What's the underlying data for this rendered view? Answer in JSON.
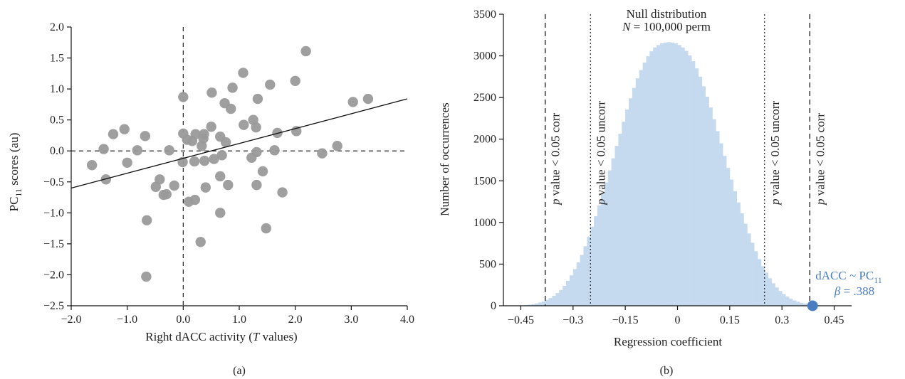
{
  "chart_data": [
    {
      "type": "scatter",
      "panel_label": "(a)",
      "xlabel_prefix": "Right dACC activity (",
      "xlabel_italic": "T",
      "xlabel_suffix": " values)",
      "ylabel_main": "PC",
      "ylabel_sub": "11",
      "ylabel_suffix": " scores (au)",
      "xlim": [
        -2.0,
        4.0
      ],
      "ylim": [
        -2.5,
        2.0
      ],
      "xticks": [
        "−2.0",
        "−1.0",
        "0.0",
        "1.0",
        "2.0",
        "3.0",
        "4.0"
      ],
      "yticks": [
        "2.0",
        "1.5",
        "1.0",
        "0.5",
        "0.0",
        "−0.5",
        "−1.0",
        "−1.5",
        "−2.0",
        "−2.5"
      ],
      "point_color": "#9a9a9a",
      "points": [
        [
          -1.63,
          -0.23
        ],
        [
          -1.42,
          0.03
        ],
        [
          -1.38,
          -0.46
        ],
        [
          -1.25,
          0.27
        ],
        [
          -1.05,
          0.35
        ],
        [
          -1.0,
          -0.19
        ],
        [
          -0.82,
          0.01
        ],
        [
          -0.68,
          0.24
        ],
        [
          -0.65,
          -1.12
        ],
        [
          -0.66,
          -2.03
        ],
        [
          -0.49,
          -0.58
        ],
        [
          -0.42,
          -0.46
        ],
        [
          -0.35,
          -0.71
        ],
        [
          -0.3,
          -0.7
        ],
        [
          -0.25,
          0.01
        ],
        [
          -0.16,
          -0.56
        ],
        [
          0.0,
          0.87
        ],
        [
          0.0,
          0.28
        ],
        [
          -0.01,
          -0.18
        ],
        [
          0.07,
          0.18
        ],
        [
          0.1,
          -0.82
        ],
        [
          0.16,
          0.16
        ],
        [
          0.22,
          0.27
        ],
        [
          0.21,
          -0.79
        ],
        [
          0.2,
          -0.17
        ],
        [
          0.33,
          0.08
        ],
        [
          0.36,
          0.2
        ],
        [
          0.37,
          0.27
        ],
        [
          0.38,
          -0.16
        ],
        [
          0.31,
          -1.47
        ],
        [
          0.4,
          -0.59
        ],
        [
          0.5,
          0.39
        ],
        [
          0.51,
          0.94
        ],
        [
          0.55,
          -0.13
        ],
        [
          0.66,
          0.23
        ],
        [
          0.69,
          -0.07
        ],
        [
          0.66,
          -0.41
        ],
        [
          0.66,
          -1.0
        ],
        [
          0.74,
          0.77
        ],
        [
          0.76,
          0.14
        ],
        [
          0.8,
          -0.55
        ],
        [
          0.85,
          0.68
        ],
        [
          0.88,
          1.02
        ],
        [
          1.07,
          1.26
        ],
        [
          1.08,
          0.42
        ],
        [
          1.22,
          -0.11
        ],
        [
          1.25,
          0.5
        ],
        [
          1.3,
          0.38
        ],
        [
          1.31,
          -0.02
        ],
        [
          1.31,
          -0.55
        ],
        [
          1.33,
          0.84
        ],
        [
          1.42,
          -0.33
        ],
        [
          1.48,
          -1.25
        ],
        [
          1.55,
          1.07
        ],
        [
          1.63,
          0.01
        ],
        [
          1.68,
          0.29
        ],
        [
          1.77,
          -0.67
        ],
        [
          2.0,
          1.13
        ],
        [
          2.02,
          0.32
        ],
        [
          2.19,
          1.61
        ],
        [
          2.48,
          -0.04
        ],
        [
          2.75,
          0.08
        ],
        [
          3.03,
          0.79
        ],
        [
          3.3,
          0.84
        ]
      ],
      "fit_line": {
        "x": [
          -2.0,
          4.0
        ],
        "y": [
          -0.6,
          0.84
        ]
      },
      "reference_lines": {
        "x": 0.0,
        "y": 0.0
      }
    },
    {
      "type": "histogram",
      "panel_label": "(b)",
      "title_line1": "Null distribution",
      "title_line2_italic": "N",
      "title_line2_rest": " = 100,000 perm",
      "xlabel": "Regression coefficient",
      "ylabel": "Number of occurrences",
      "xlim": [
        -0.5,
        0.5
      ],
      "ylim": [
        0,
        3500
      ],
      "xticks": [
        "−0.45",
        "−0.3",
        "−0.15",
        "0",
        "0.15",
        "0.3",
        "0.45"
      ],
      "yticks": [
        "3500",
        "3000",
        "2500",
        "2000",
        "1500",
        "1000",
        "500",
        "0"
      ],
      "bar_color": "#c5d9ef",
      "bin_width": 0.01,
      "bins": {
        "centers": [
          -0.485,
          -0.475,
          -0.465,
          -0.455,
          -0.445,
          -0.435,
          -0.425,
          -0.415,
          -0.405,
          -0.395,
          -0.385,
          -0.375,
          -0.365,
          -0.355,
          -0.345,
          -0.335,
          -0.325,
          -0.315,
          -0.305,
          -0.295,
          -0.285,
          -0.275,
          -0.265,
          -0.255,
          -0.245,
          -0.235,
          -0.225,
          -0.215,
          -0.205,
          -0.195,
          -0.185,
          -0.175,
          -0.165,
          -0.155,
          -0.145,
          -0.135,
          -0.125,
          -0.115,
          -0.105,
          -0.095,
          -0.085,
          -0.075,
          -0.065,
          -0.055,
          -0.045,
          -0.035,
          -0.025,
          -0.015,
          -0.005,
          0.005,
          0.015,
          0.025,
          0.035,
          0.045,
          0.055,
          0.065,
          0.075,
          0.085,
          0.095,
          0.105,
          0.115,
          0.125,
          0.135,
          0.145,
          0.155,
          0.165,
          0.175,
          0.185,
          0.195,
          0.205,
          0.215,
          0.225,
          0.235,
          0.245,
          0.255,
          0.265,
          0.275,
          0.285,
          0.295,
          0.305,
          0.315,
          0.325,
          0.335,
          0.345,
          0.355,
          0.365,
          0.375,
          0.385,
          0.395,
          0.405,
          0.415,
          0.425,
          0.435,
          0.445,
          0.455,
          0.465,
          0.475,
          0.485
        ],
        "counts": [
          0,
          0,
          2,
          3,
          5,
          8,
          12,
          18,
          27,
          38,
          52,
          70,
          93,
          120,
          153,
          190,
          240,
          300,
          365,
          440,
          520,
          610,
          715,
          830,
          950,
          1075,
          1205,
          1340,
          1480,
          1625,
          1770,
          1920,
          2065,
          2210,
          2355,
          2490,
          2615,
          2730,
          2830,
          2920,
          2995,
          3055,
          3100,
          3130,
          3150,
          3160,
          3165,
          3160,
          3150,
          3130,
          3100,
          3060,
          3005,
          2935,
          2850,
          2750,
          2635,
          2510,
          2380,
          2240,
          2095,
          1950,
          1800,
          1655,
          1515,
          1375,
          1240,
          1110,
          985,
          868,
          757,
          655,
          560,
          475,
          398,
          330,
          270,
          220,
          177,
          141,
          110,
          85,
          65,
          49,
          36,
          26,
          19,
          13,
          9,
          6,
          4,
          2,
          1,
          1,
          0,
          0,
          0,
          0
        ]
      },
      "thresholds": [
        {
          "x": -0.38,
          "style": "dashed",
          "label_italic": "p",
          "label_rest": " value < 0.05 corr"
        },
        {
          "x": -0.25,
          "style": "dotted",
          "label_italic": "p",
          "label_rest": " value < 0.05 uncorr"
        },
        {
          "x": 0.25,
          "style": "dotted",
          "label_italic": "p",
          "label_rest": " value < 0.05 uncorr"
        },
        {
          "x": 0.38,
          "style": "dashed",
          "label_italic": "p",
          "label_rest": " value < 0.05 corr"
        }
      ],
      "observed": {
        "x": 0.388,
        "y": 0,
        "color": "#4a7ec2",
        "label_line1_main": "dACC ~ PC",
        "label_line1_sub": "11",
        "label_line2_italic": "β",
        "label_line2_rest": " = .388"
      }
    }
  ]
}
